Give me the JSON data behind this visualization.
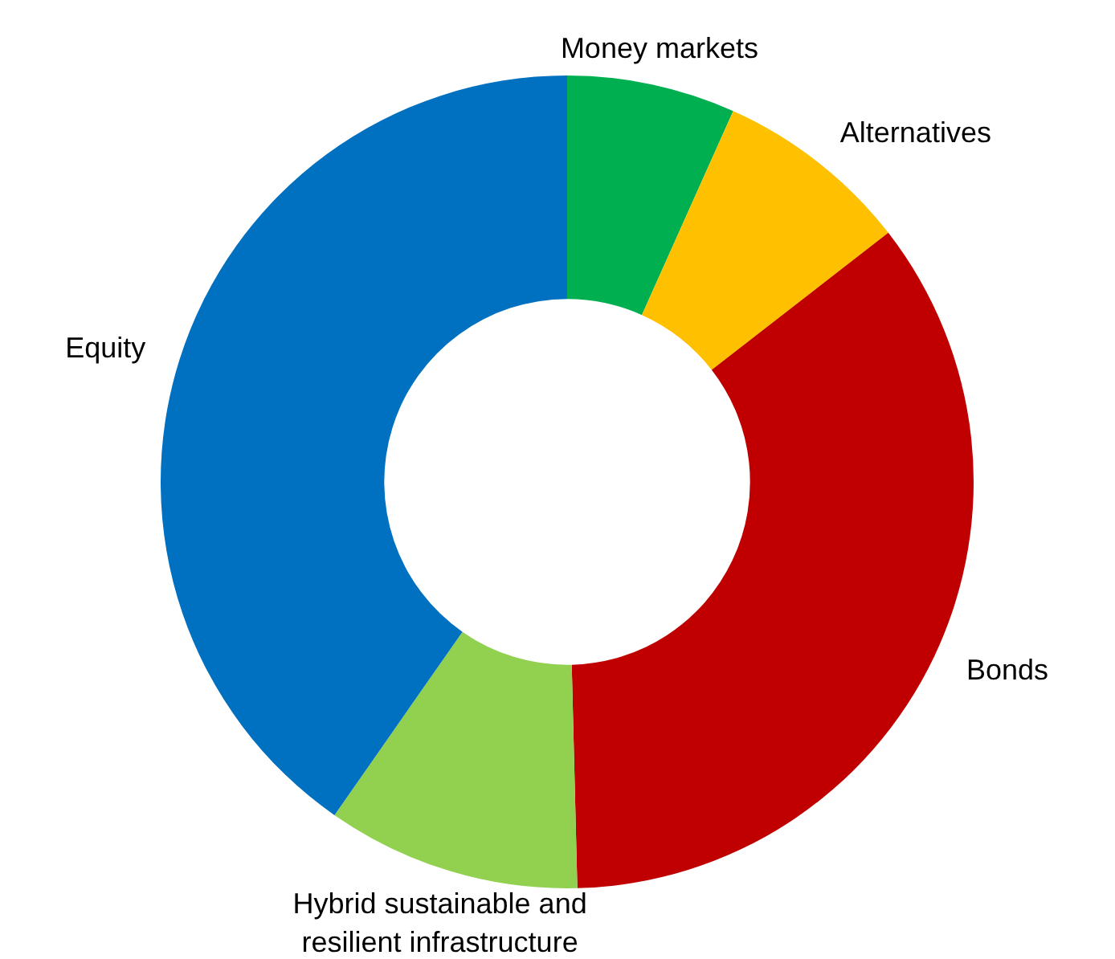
{
  "chart_data": {
    "type": "donut",
    "categories": [
      "Money markets",
      "Alternatives",
      "Bonds",
      "Hybrid sustainable and resilient infrastructure",
      "Equity"
    ],
    "values": [
      6.7,
      7.8,
      35.1,
      10.1,
      40.3
    ],
    "colors": [
      "#00b050",
      "#ffc000",
      "#c00000",
      "#92d050",
      "#0070c0"
    ],
    "legend": false
  }
}
